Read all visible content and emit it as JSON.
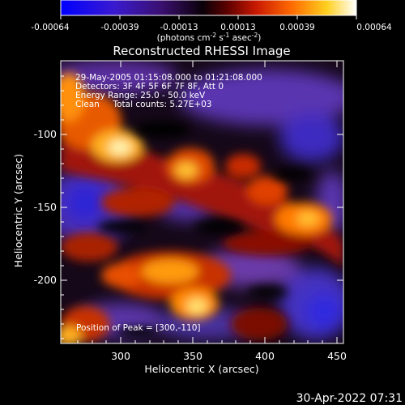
{
  "colorbar": {
    "ticks": [
      "-0.00064",
      "-0.00039",
      "-0.00013",
      "0.00013",
      "0.00039",
      "0.00064"
    ],
    "unit_main": "(photons cm",
    "unit_exp1": "-2",
    "unit_mid1": " s",
    "unit_exp2": "-1",
    "unit_mid2": " asec",
    "unit_exp3": "-2",
    "unit_end": ")"
  },
  "plot": {
    "title": "Reconstructed RHESSI Image",
    "info_lines": [
      "29-May-2005 01:15:08.000 to 01:21:08.000",
      "Detectors: 3F 4F 5F 6F 7F 8F, Att 0",
      "Energy Range: 25.0 - 50.0 keV",
      "Clean     Total counts: 5.27E+03"
    ],
    "peak_label": "Position of Peak = [300,-110]",
    "x_axis_label": "Heliocentric X (arcsec)",
    "y_axis_label": "Heliocentric Y (arcsec)",
    "x_ticks": [
      "300",
      "350",
      "400",
      "450"
    ],
    "y_ticks": [
      "-100",
      "-150",
      "-200"
    ]
  },
  "footer": {
    "timestamp": "30-Apr-2022 07:31"
  },
  "chart_data": {
    "type": "heatmap",
    "title": "Reconstructed RHESSI Image",
    "xlabel": "Heliocentric X (arcsec)",
    "ylabel": "Heliocentric Y (arcsec)",
    "xlim": [
      260,
      450
    ],
    "ylim": [
      -245,
      -45
    ],
    "x_ticks": [
      300,
      350,
      400,
      450
    ],
    "y_ticks": [
      -100,
      -150,
      -200
    ],
    "colorbar_range": [
      -0.00064,
      0.00064
    ],
    "colormap": "blue-purple-black-red-yellow-white",
    "peak_position": [
      300,
      -110
    ],
    "colors": {
      "negative_strong": "#2a22c0",
      "negative_mid": "#6a3aa8",
      "zero": "#000000",
      "positive_low": "#b01010",
      "positive_mid": "#ff6000",
      "positive_high": "#ffe030",
      "positive_max": "#ffffff"
    }
  }
}
